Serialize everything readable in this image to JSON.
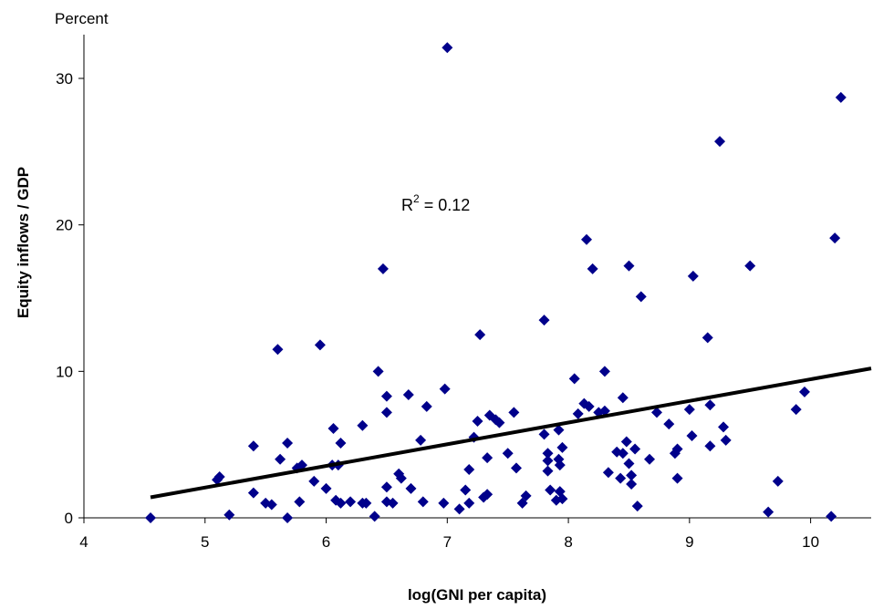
{
  "chart_data": {
    "type": "scatter",
    "title": "",
    "xlabel": "log(GNI per capita)",
    "ylabel": "Equity inflows / GDP",
    "y_unit_label": "Percent",
    "xlim": [
      4,
      10.5
    ],
    "ylim": [
      0,
      33
    ],
    "x_ticks": [
      4,
      5,
      6,
      7,
      8,
      9,
      10
    ],
    "y_ticks": [
      0,
      10,
      20,
      30
    ],
    "marker_color": "#00008B",
    "trendline_color": "#000000",
    "annotation": {
      "r2_base": "R",
      "r2_exp": "2",
      "r2_value": " = 0.12"
    },
    "trendline": {
      "x": [
        4.55,
        10.5
      ],
      "y": [
        1.4,
        10.2
      ]
    },
    "points": [
      [
        4.55,
        0.0
      ],
      [
        5.12,
        2.8
      ],
      [
        5.1,
        2.6
      ],
      [
        5.2,
        0.2
      ],
      [
        5.4,
        4.9
      ],
      [
        5.4,
        1.7
      ],
      [
        5.5,
        1.0
      ],
      [
        5.55,
        0.9
      ],
      [
        5.6,
        11.5
      ],
      [
        5.62,
        4.0
      ],
      [
        5.68,
        5.1
      ],
      [
        5.68,
        0.0
      ],
      [
        5.76,
        3.4
      ],
      [
        5.78,
        1.1
      ],
      [
        5.8,
        3.6
      ],
      [
        5.9,
        2.5
      ],
      [
        5.95,
        11.8
      ],
      [
        6.0,
        2.0
      ],
      [
        6.05,
        3.6
      ],
      [
        6.06,
        6.1
      ],
      [
        6.08,
        1.2
      ],
      [
        6.1,
        3.6
      ],
      [
        6.12,
        5.1
      ],
      [
        6.12,
        1.0
      ],
      [
        6.2,
        1.1
      ],
      [
        6.3,
        6.3
      ],
      [
        6.3,
        1.0
      ],
      [
        6.33,
        1.0
      ],
      [
        6.4,
        0.1
      ],
      [
        6.43,
        10.0
      ],
      [
        6.47,
        17.0
      ],
      [
        6.5,
        8.3
      ],
      [
        6.5,
        7.2
      ],
      [
        6.5,
        2.1
      ],
      [
        6.5,
        1.1
      ],
      [
        6.55,
        1.0
      ],
      [
        6.6,
        3.0
      ],
      [
        6.62,
        2.7
      ],
      [
        6.68,
        8.4
      ],
      [
        6.7,
        2.0
      ],
      [
        6.78,
        5.3
      ],
      [
        6.8,
        1.1
      ],
      [
        6.83,
        7.6
      ],
      [
        6.98,
        8.8
      ],
      [
        6.97,
        1.0
      ],
      [
        7.0,
        32.1
      ],
      [
        7.1,
        0.6
      ],
      [
        7.15,
        1.9
      ],
      [
        7.18,
        3.3
      ],
      [
        7.18,
        1.0
      ],
      [
        7.22,
        5.5
      ],
      [
        7.25,
        6.6
      ],
      [
        7.27,
        12.5
      ],
      [
        7.3,
        1.4
      ],
      [
        7.33,
        4.1
      ],
      [
        7.33,
        1.6
      ],
      [
        7.35,
        7.0
      ],
      [
        7.4,
        6.7
      ],
      [
        7.43,
        6.5
      ],
      [
        7.5,
        4.4
      ],
      [
        7.55,
        7.2
      ],
      [
        7.57,
        3.4
      ],
      [
        7.62,
        1.0
      ],
      [
        7.65,
        1.5
      ],
      [
        7.8,
        13.5
      ],
      [
        7.8,
        5.7
      ],
      [
        7.83,
        4.4
      ],
      [
        7.83,
        3.9
      ],
      [
        7.83,
        3.2
      ],
      [
        7.85,
        1.9
      ],
      [
        7.9,
        1.2
      ],
      [
        7.92,
        6.0
      ],
      [
        7.92,
        4.0
      ],
      [
        7.93,
        3.6
      ],
      [
        7.95,
        4.8
      ],
      [
        7.93,
        1.8
      ],
      [
        7.95,
        1.3
      ],
      [
        8.05,
        9.5
      ],
      [
        8.08,
        7.1
      ],
      [
        8.13,
        7.8
      ],
      [
        8.15,
        19.0
      ],
      [
        8.17,
        7.6
      ],
      [
        8.2,
        17.0
      ],
      [
        8.25,
        7.2
      ],
      [
        8.3,
        10.0
      ],
      [
        8.33,
        3.1
      ],
      [
        8.3,
        7.3
      ],
      [
        8.4,
        4.5
      ],
      [
        8.43,
        2.7
      ],
      [
        8.45,
        8.2
      ],
      [
        8.45,
        4.4
      ],
      [
        8.48,
        5.2
      ],
      [
        8.5,
        3.7
      ],
      [
        8.52,
        2.9
      ],
      [
        8.5,
        17.2
      ],
      [
        8.52,
        2.3
      ],
      [
        8.55,
        4.7
      ],
      [
        8.57,
        0.8
      ],
      [
        8.6,
        15.1
      ],
      [
        8.67,
        4.0
      ],
      [
        8.73,
        7.2
      ],
      [
        8.83,
        6.4
      ],
      [
        8.88,
        4.4
      ],
      [
        8.9,
        2.7
      ],
      [
        8.9,
        4.7
      ],
      [
        9.0,
        7.4
      ],
      [
        9.02,
        5.6
      ],
      [
        9.03,
        16.5
      ],
      [
        9.15,
        12.3
      ],
      [
        9.17,
        7.7
      ],
      [
        9.17,
        4.9
      ],
      [
        9.25,
        25.7
      ],
      [
        9.28,
        6.2
      ],
      [
        9.3,
        5.3
      ],
      [
        9.5,
        17.2
      ],
      [
        9.65,
        0.4
      ],
      [
        9.73,
        2.5
      ],
      [
        9.88,
        7.4
      ],
      [
        9.95,
        8.6
      ],
      [
        10.17,
        0.1
      ],
      [
        10.2,
        19.1
      ],
      [
        10.25,
        28.7
      ]
    ]
  }
}
